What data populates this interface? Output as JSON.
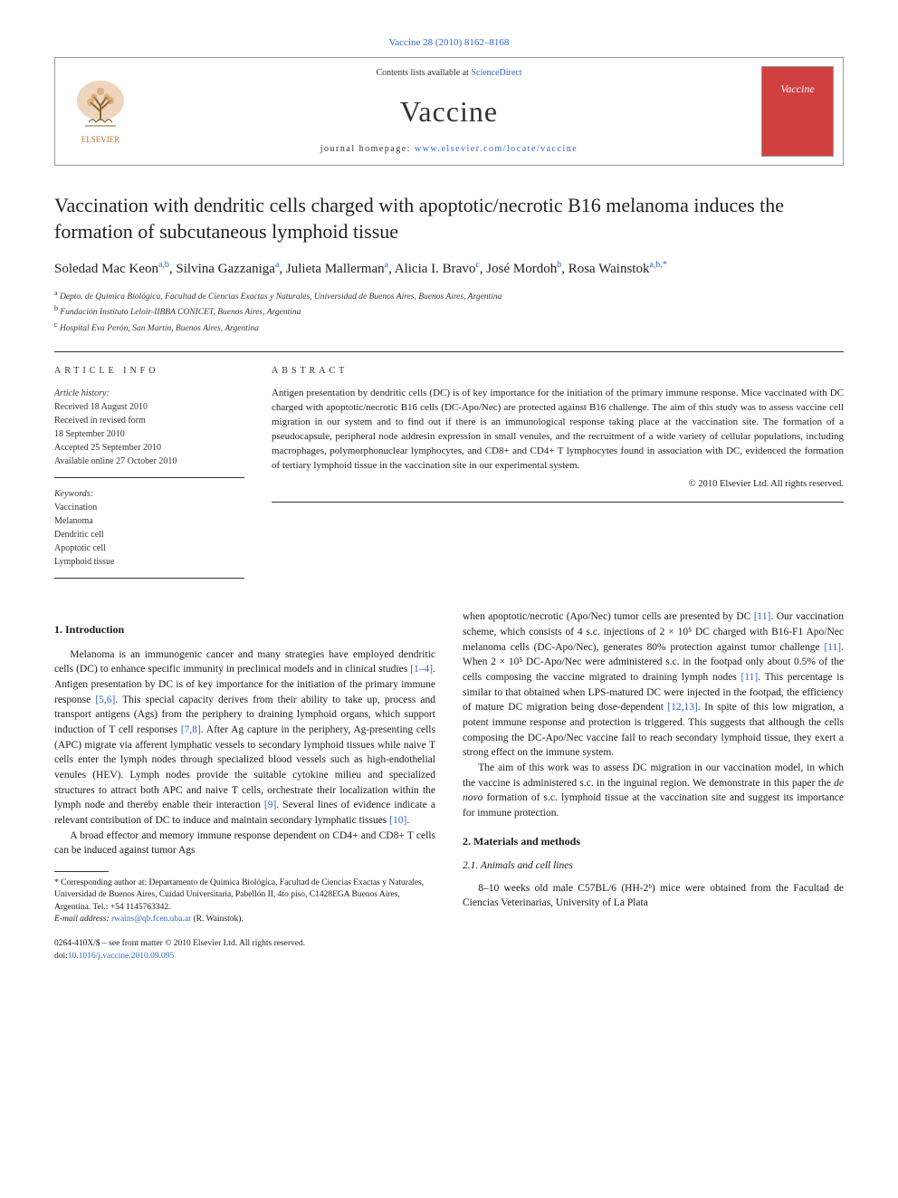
{
  "citation": "Vaccine 28 (2010) 8162–8168",
  "header": {
    "contents_prefix": "Contents lists available at ",
    "contents_link": "ScienceDirect",
    "journal_name": "Vaccine",
    "homepage_prefix": "journal homepage: ",
    "homepage_url": "www.elsevier.com/locate/vaccine",
    "cover_title": "Vaccine"
  },
  "title": "Vaccination with dendritic cells charged with apoptotic/necrotic B16 melanoma induces the formation of subcutaneous lymphoid tissue",
  "authors_html": "Soledad Mac Keon<sup>a,b</sup>, Silvina Gazzaniga<sup>a</sup>, Julieta Mallerman<sup>a</sup>, Alicia I. Bravo<sup>c</sup>, José Mordoh<sup>b</sup>, Rosa Wainstok<sup>a,b,*</sup>",
  "affiliations": [
    {
      "sup": "a",
      "text": "Depto. de Química Biológica, Facultad de Ciencias Exactas y Naturales, Universidad de Buenos Aires, Buenos Aires, Argentina"
    },
    {
      "sup": "b",
      "text": "Fundación Instituto Leloir-IIBBA CONICET, Buenos Aires, Argentina"
    },
    {
      "sup": "c",
      "text": "Hospital Eva Perón, San Martín, Buenos Aires, Argentina"
    }
  ],
  "article_info": {
    "heading": "ARTICLE INFO",
    "history_label": "Article history:",
    "history": [
      "Received 18 August 2010",
      "Received in revised form",
      "18 September 2010",
      "Accepted 25 September 2010",
      "Available online 27 October 2010"
    ],
    "keywords_label": "Keywords:",
    "keywords": [
      "Vaccination",
      "Melanoma",
      "Dendritic cell",
      "Apoptotic cell",
      "Lymphoid tissue"
    ]
  },
  "abstract": {
    "heading": "ABSTRACT",
    "text": "Antigen presentation by dendritic cells (DC) is of key importance for the initiation of the primary immune response. Mice vaccinated with DC charged with apoptotic/necrotic B16 cells (DC-Apo/Nec) are protected against B16 challenge. The aim of this study was to assess vaccine cell migration in our system and to find out if there is an immunological response taking place at the vaccination site. The formation of a pseudocapsule, peripheral node addresin expression in small venules, and the recruitment of a wide variety of cellular populations, including macrophages, polymorphonuclear lymphocytes, and CD8+ and CD4+ T lymphocytes found in association with DC, evidenced the formation of tertiary lymphoid tissue in the vaccination site in our experimental system.",
    "copyright": "© 2010 Elsevier Ltd. All rights reserved."
  },
  "sections": {
    "intro_heading": "1. Introduction",
    "intro_p1": "Melanoma is an immunogenic cancer and many strategies have employed dendritic cells (DC) to enhance specific immunity in preclinical models and in clinical studies [1–4]. Antigen presentation by DC is of key importance for the initiation of the primary immune response [5,6]. This special capacity derives from their ability to take up, process and transport antigens (Ags) from the periphery to draining lymphoid organs, which support induction of T cell responses [7,8]. After Ag capture in the periphery, Ag-presenting cells (APC) migrate via afferent lymphatic vessels to secondary lymphoid tissues while naive T cells enter the lymph nodes through specialized blood vessels such as high-endothelial venules (HEV). Lymph nodes provide the suitable cytokine milieu and specialized structures to attract both APC and naive T cells, orchestrate their localization within the lymph node and thereby enable their interaction [9]. Several lines of evidence indicate a relevant contribution of DC to induce and maintain secondary lymphatic tissues [10].",
    "intro_p2": "A broad effector and memory immune response dependent on CD4+ and CD8+ T cells can be induced against tumor Ags",
    "col2_p1": "when apoptotic/necrotic (Apo/Nec) tumor cells are presented by DC [11]. Our vaccination scheme, which consists of 4 s.c. injections of 2 × 10⁵ DC charged with B16-F1 Apo/Nec melanoma cells (DC-Apo/Nec), generates 80% protection against tumor challenge [11]. When 2 × 10⁵ DC-Apo/Nec were administered s.c. in the footpad only about 0.5% of the cells composing the vaccine migrated to draining lymph nodes [11]. This percentage is similar to that obtained when LPS-matured DC were injected in the footpad, the efficiency of mature DC migration being dose-dependent [12,13]. In spite of this low migration, a potent immune response and protection is triggered. This suggests that although the cells composing the DC-Apo/Nec vaccine fail to reach secondary lymphoid tissue, they exert a strong effect on the immune system.",
    "col2_p2": "The aim of this work was to assess DC migration in our vaccination model, in which the vaccine is administered s.c. in the inguinal region. We demonstrate in this paper the de novo formation of s.c. lymphoid tissue at the vaccination site and suggest its importance for immune protection.",
    "methods_heading": "2. Materials and methods",
    "methods_sub1": "2.1. Animals and cell lines",
    "methods_p1": "8–10 weeks old male C57BL/6 (HH-2ᵇ) mice were obtained from the Facultad de Ciencias Veterinarias, University of La Plata"
  },
  "footnote": {
    "corr": "* Corresponding author at: Departamento de Química Biológica, Facultad de Ciencias Exactas y Naturales, Universidad de Buenos Aires, Cuidad Universitaria, Pabellón II, 4to piso, C1428EGA Buenos Aires, Argentina. Tel.: +54 1145763342.",
    "email_label": "E-mail address: ",
    "email": "rwains@qb.fcen.uba.ar",
    "email_who": " (R. Wainstok)."
  },
  "bottom": {
    "line1": "0264-410X/$ – see front matter © 2010 Elsevier Ltd. All rights reserved.",
    "doi_label": "doi:",
    "doi": "10.1016/j.vaccine.2010.09.095"
  },
  "colors": {
    "link": "#3366cc",
    "text": "#1a1a1a",
    "cover_bg": "#d04040",
    "border": "#333333"
  }
}
